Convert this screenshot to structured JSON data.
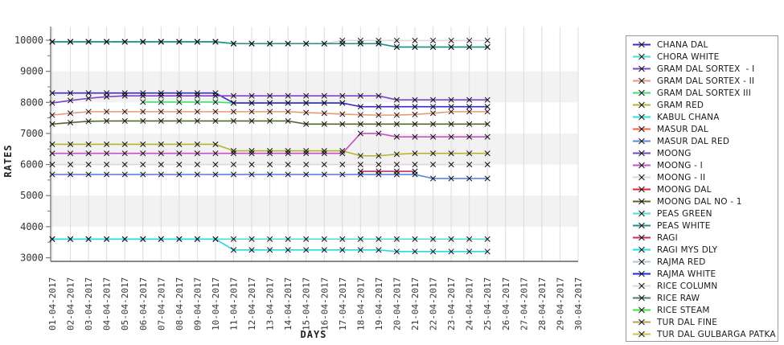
{
  "y_axis": {
    "title": "RATES",
    "min": 3000,
    "max": 10000,
    "major_step": 1000,
    "minor_step": 500,
    "tick_labels": [
      "10000",
      "9000",
      "8000",
      "7000",
      "6000",
      "5000",
      "4000",
      "3000"
    ]
  },
  "x_axis": {
    "title": "DAYS",
    "labels": [
      "01-04-2017",
      "02-04-2017",
      "03-04-2017",
      "04-04-2017",
      "05-04-2017",
      "06-04-2017",
      "07-04-2017",
      "08-04-2017",
      "09-04-2017",
      "10-04-2017",
      "11-04-2017",
      "12-04-2017",
      "13-04-2017",
      "14-04-2017",
      "15-04-2017",
      "16-04-2017",
      "17-04-2017",
      "18-04-2017",
      "19-04-2017",
      "20-04-2017",
      "21-04-2017",
      "22-04-2017",
      "23-04-2017",
      "24-04-2017",
      "25-04-2017",
      "26-04-2017",
      "27-04-2017",
      "28-04-2017",
      "29-04-2017",
      "30-04-2017"
    ]
  },
  "colors": {
    "band_gray": "#f2f2f2",
    "grid": "#dcdcdc",
    "axis": "#777777",
    "marker": "#111111",
    "legend_border": "#9a9a9a",
    "text": "#333333"
  },
  "legend": [
    {
      "label": "CHANA DAL",
      "color": "#3b2ad0"
    },
    {
      "label": "CHORA WHITE",
      "color": "#40e0d0"
    },
    {
      "label": "GRAM DAL SORTEX  - I",
      "color": "#7d44c8"
    },
    {
      "label": "GRAM DAL SORTEX - II",
      "color": "#e9967a"
    },
    {
      "label": "GRAM DAL SORTEX III",
      "color": "#3fdf6f"
    },
    {
      "label": "GRAM RED",
      "color": "#b5b52d"
    },
    {
      "label": "KABUL CHANA",
      "color": "#2be0d6"
    },
    {
      "label": "MASUR DAL",
      "color": "#ff5a3c"
    },
    {
      "label": "MASUR DAL RED",
      "color": "#5a86e0"
    },
    {
      "label": "MOONG",
      "color": "#6a4fb5"
    },
    {
      "label": "MOONG - I",
      "color": "#c94fc9"
    },
    {
      "label": "MOONG - II",
      "color": "#e5d3db"
    },
    {
      "label": "MOONG DAL",
      "color": "#e8232e"
    },
    {
      "label": "MOONG DAL NO - 1",
      "color": "#4f6b28"
    },
    {
      "label": "PEAS GREEN",
      "color": "#52dfd2"
    },
    {
      "label": "PEAS WHITE",
      "color": "#218f83"
    },
    {
      "label": "RAGI",
      "color": "#c92b66"
    },
    {
      "label": "RAGI MYS DLY",
      "color": "#1fdde3"
    },
    {
      "label": "RAJMA RED",
      "color": "#a9c6de"
    },
    {
      "label": "RAJMA WHITE",
      "color": "#1a2adb"
    },
    {
      "label": "RICE COLUMN",
      "color": "#d9d9d9"
    },
    {
      "label": "RICE RAW",
      "color": "#4e7d5b"
    },
    {
      "label": "RICE STEAM",
      "color": "#3fe03f"
    },
    {
      "label": "TUR DAL FINE",
      "color": "#b3a158"
    },
    {
      "label": "TUR DAL GULBARGA PATKA",
      "color": "#c6c650"
    }
  ],
  "chart_data": {
    "type": "line",
    "title": "",
    "xlabel": "DAYS",
    "ylabel": "RATES",
    "ylim": [
      3000,
      10000
    ],
    "grid": "vertical, alternating horizontal bands",
    "legend_position": "right",
    "marker": "x",
    "x": [
      "01-04-2017",
      "02-04-2017",
      "03-04-2017",
      "04-04-2017",
      "05-04-2017",
      "06-04-2017",
      "07-04-2017",
      "08-04-2017",
      "09-04-2017",
      "10-04-2017",
      "11-04-2017",
      "12-04-2017",
      "13-04-2017",
      "14-04-2017",
      "15-04-2017",
      "16-04-2017",
      "17-04-2017",
      "18-04-2017",
      "19-04-2017",
      "20-04-2017",
      "21-04-2017",
      "22-04-2017",
      "23-04-2017",
      "24-04-2017",
      "25-04-2017"
    ],
    "series": [
      {
        "name": "RICE COLUMN",
        "color": "#d9d9d9",
        "values": [
          9950,
          9950,
          9950,
          9950,
          9950,
          9950,
          9950,
          9950,
          9950,
          9950,
          9890,
          9890,
          9890,
          9890,
          9890,
          9890,
          9990,
          9990,
          9990,
          9990,
          9990,
          9990,
          9990,
          9990,
          9990
        ]
      },
      {
        "name": "KABUL CHANA",
        "color": "#2be0d6",
        "values": [
          9950,
          9950,
          9950,
          9950,
          9950,
          9950,
          9950,
          9950,
          9950,
          9950,
          9890,
          9890,
          9890,
          9890,
          9890,
          9890,
          9890,
          9890,
          9890,
          9780,
          9780,
          9780,
          9780,
          9780,
          9780
        ]
      },
      {
        "name": "CHORA WHITE",
        "color": "#40e0d0",
        "values": [
          9950,
          9950,
          9950,
          9950,
          9950,
          9950,
          9950,
          9950,
          9950,
          9950,
          9890,
          9890,
          9890,
          9890,
          9890,
          9890,
          9890,
          9890,
          9890,
          9780,
          9780,
          9780,
          9780,
          9780,
          9780
        ]
      },
      {
        "name": "PEAS WHITE",
        "color": "#218f83",
        "values": [
          9950,
          9950,
          9950,
          9950,
          9950,
          9950,
          9950,
          9950,
          9950,
          9950,
          9890,
          9890,
          9890,
          9890,
          9890,
          9890,
          9890,
          9890,
          9890,
          9780,
          9780,
          9780,
          9780,
          9780,
          9780
        ]
      },
      {
        "name": "GRAM DAL SORTEX III",
        "color": "#3fdf6f",
        "values": [
          null,
          null,
          null,
          null,
          null,
          8010,
          8010,
          8010,
          8010,
          8010,
          7980,
          7980,
          7980,
          7980,
          7980,
          7980,
          7980,
          null,
          null,
          null,
          null,
          null,
          null,
          null,
          null
        ]
      },
      {
        "name": "CHANA DAL",
        "color": "#3b2ad0",
        "values": [
          8300,
          8300,
          8300,
          8300,
          8300,
          8300,
          8300,
          8300,
          8300,
          8300,
          7980,
          7980,
          7980,
          7980,
          7980,
          7980,
          7980,
          7860,
          7860,
          7860,
          7860,
          7860,
          7860,
          7860,
          7860
        ]
      },
      {
        "name": "GRAM DAL SORTEX  - I",
        "color": "#7d44c8",
        "values": [
          7980,
          8060,
          8130,
          8180,
          8210,
          8210,
          8210,
          8210,
          8210,
          8210,
          8210,
          8210,
          8210,
          8210,
          8210,
          8210,
          8210,
          8210,
          8210,
          8080,
          8080,
          8080,
          8080,
          8080,
          8080
        ]
      },
      {
        "name": "GRAM DAL SORTEX - II",
        "color": "#e9967a",
        "values": [
          7590,
          7650,
          7700,
          7700,
          7700,
          7700,
          7700,
          7700,
          7700,
          7700,
          7700,
          7700,
          7700,
          7700,
          7670,
          7650,
          7620,
          7600,
          7590,
          7590,
          7610,
          7650,
          7700,
          7700,
          7700
        ]
      },
      {
        "name": "MOONG DAL NO - 1",
        "color": "#4f6b28",
        "values": [
          7300,
          7350,
          7390,
          7400,
          7400,
          7400,
          7400,
          7400,
          7400,
          7400,
          7400,
          7400,
          7400,
          7400,
          7300,
          7300,
          7300,
          7300,
          7300,
          7300,
          7300,
          7300,
          7300,
          7300,
          7300
        ]
      },
      {
        "name": "GRAM RED",
        "color": "#b5b52d",
        "values": [
          6650,
          6650,
          6650,
          6650,
          6650,
          6650,
          6650,
          6650,
          6650,
          6650,
          6440,
          6440,
          6440,
          6440,
          6440,
          6440,
          6440,
          6280,
          6280,
          6330,
          6360,
          6360,
          6360,
          6360,
          6360
        ]
      },
      {
        "name": "MOONG - I",
        "color": "#c94fc9",
        "values": [
          6360,
          6360,
          6360,
          6360,
          6360,
          6360,
          6360,
          6360,
          6360,
          6360,
          6360,
          6360,
          6360,
          6360,
          6360,
          6360,
          6360,
          7000,
          7000,
          6890,
          6890,
          6890,
          6890,
          6890,
          6890
        ]
      },
      {
        "name": "MOONG - II",
        "color": "#e5d3db",
        "values": [
          6000,
          6000,
          6000,
          6000,
          6000,
          6000,
          6000,
          6000,
          6000,
          6000,
          6000,
          6000,
          6000,
          6000,
          6000,
          6000,
          6000,
          6000,
          6000,
          6000,
          6000,
          6000,
          6000,
          6000,
          6000
        ]
      },
      {
        "name": "RAGI",
        "color": "#c92b66",
        "values": [
          null,
          null,
          null,
          null,
          null,
          null,
          null,
          null,
          null,
          null,
          null,
          null,
          null,
          null,
          null,
          null,
          null,
          5780,
          5780,
          5780,
          5780,
          null,
          null,
          null,
          null
        ]
      },
      {
        "name": "MASUR DAL RED",
        "color": "#5a86e0",
        "values": [
          5680,
          5680,
          5680,
          5680,
          5680,
          5680,
          5680,
          5680,
          5680,
          5680,
          5680,
          5680,
          5680,
          5680,
          5680,
          5680,
          5680,
          5680,
          5680,
          5680,
          5680,
          5550,
          5550,
          5550,
          5550
        ]
      },
      {
        "name": "PEAS GREEN",
        "color": "#52dfd2",
        "values": [
          3600,
          3600,
          3600,
          3600,
          3600,
          3600,
          3600,
          3600,
          3600,
          3600,
          3600,
          3600,
          3600,
          3600,
          3600,
          3600,
          3600,
          3600,
          3600,
          3600,
          3600,
          3600,
          3600,
          3600,
          3600
        ]
      },
      {
        "name": "RAGI MYS DLY",
        "color": "#1fdde3",
        "values": [
          3600,
          3600,
          3600,
          3600,
          3600,
          3600,
          3600,
          3600,
          3600,
          3600,
          3250,
          3250,
          3250,
          3250,
          3250,
          3250,
          3250,
          3250,
          3250,
          3200,
          3200,
          3200,
          3200,
          3200,
          3200
        ]
      }
    ]
  }
}
